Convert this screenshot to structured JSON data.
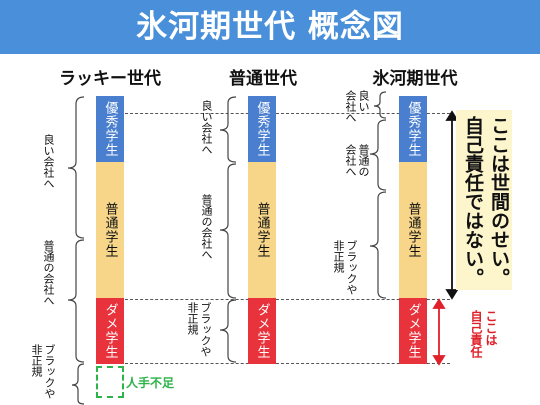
{
  "title": "氷河期世代 概念図",
  "colors": {
    "title_bg": "#4a8fd9",
    "excellent": "#4a7fcf",
    "normal": "#f7d68a",
    "bad": "#e8323c",
    "shortage": "#2db34a",
    "accent_red": "#e0202a",
    "note_bg": "#fdf6cc"
  },
  "columns": [
    {
      "title": "ラッキー世代",
      "bars": {
        "excellent": "優秀学生",
        "normal": "普通学生",
        "bad": "ダメ学生"
      },
      "labels": {
        "good": "良い会社へ",
        "normal": "普通の会社へ",
        "black": "ブラックや\n非正規"
      },
      "shortage": "人手不足"
    },
    {
      "title": "普通世代",
      "bars": {
        "excellent": "優秀学生",
        "normal": "普通学生",
        "bad": "ダメ学生"
      },
      "labels": {
        "good": "良い会社へ",
        "normal": "普通の会社へ",
        "black": "ブラックや\n非正規"
      }
    },
    {
      "title": "氷河期世代",
      "bars": {
        "excellent": "優秀学生",
        "normal": "普通学生",
        "bad": "ダメ学生"
      },
      "labels": {
        "good": "良い\n会社へ",
        "normal": "普通の\n会社へ",
        "black": "ブラックや\n非正規"
      }
    }
  ],
  "note_main": "ここは世間のせい。\n自己責任ではない。",
  "note_red": "ここは\n自己責任"
}
